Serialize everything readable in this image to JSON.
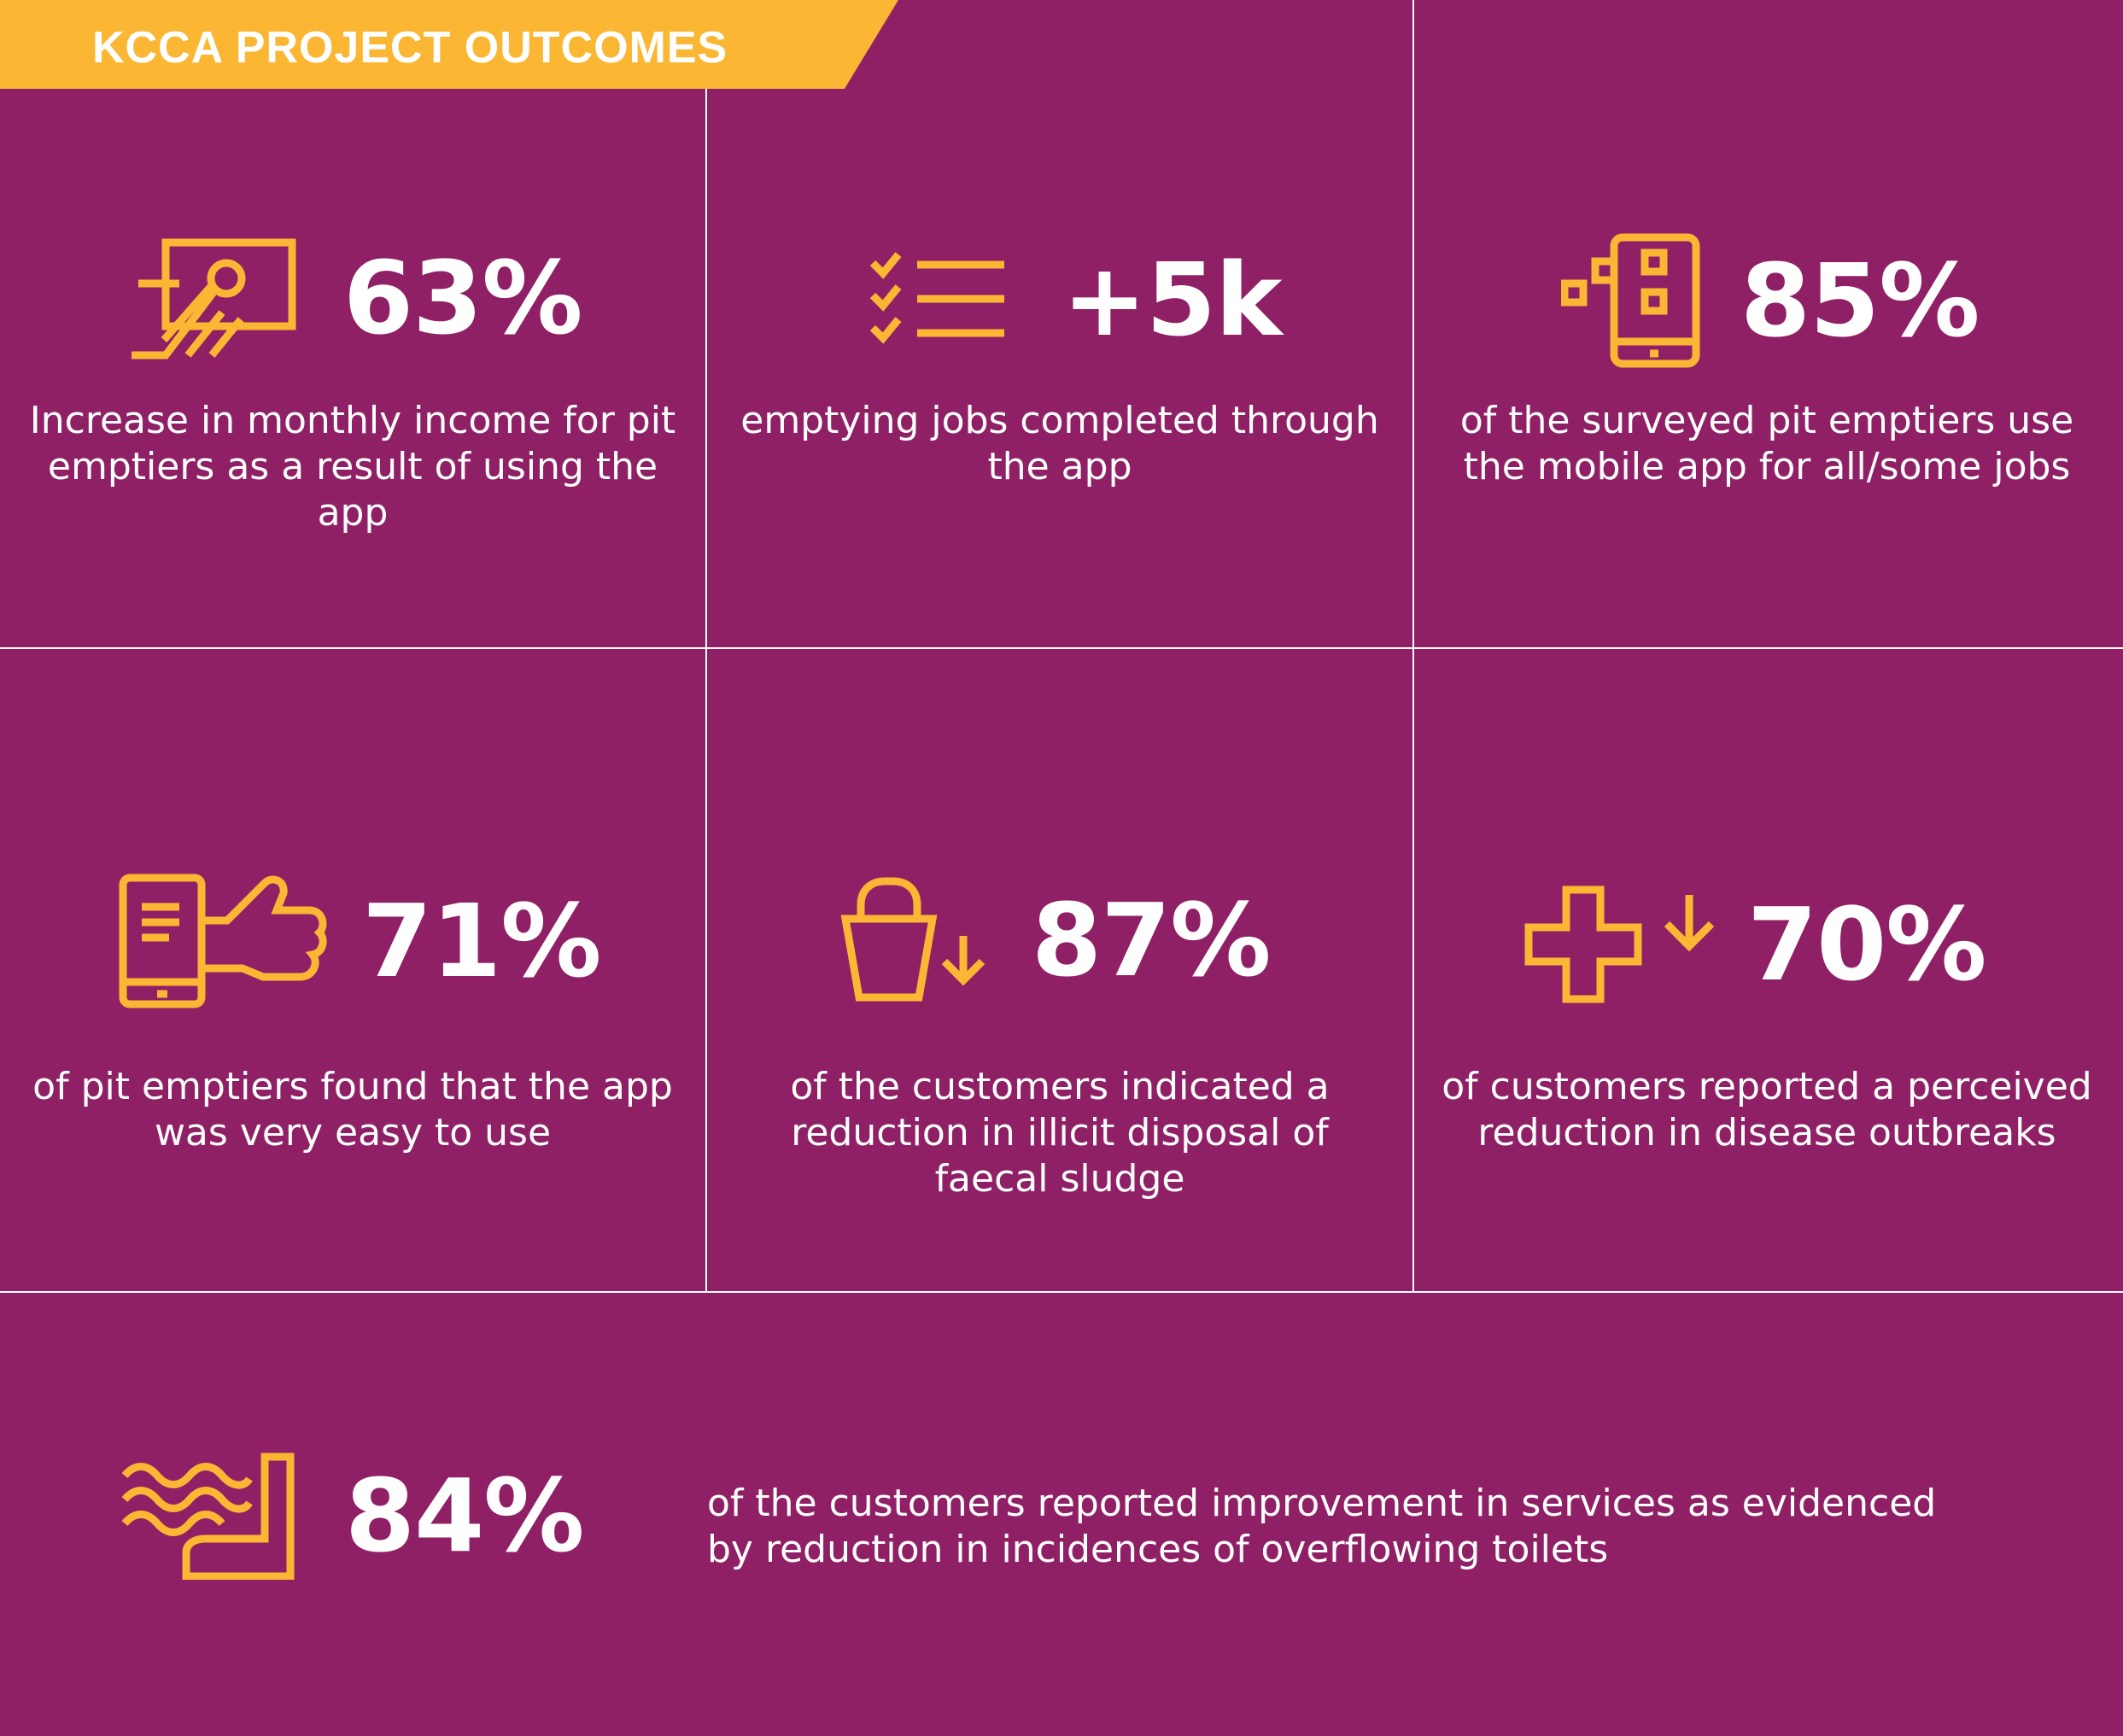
{
  "header": {
    "title": "KCCA PROJECT OUTCOMES"
  },
  "colors": {
    "background": "#8f2066",
    "accent": "#fbb734",
    "text": "#ffffff",
    "divider": "#ffffff"
  },
  "stats": [
    {
      "value": "63%",
      "description": "Increase in monthly income for pit emptiers as a result of using the app",
      "icon": "money-hand-icon"
    },
    {
      "value": "+5k",
      "description": "emptying jobs completed through the app",
      "icon": "checklist-icon"
    },
    {
      "value": "85%",
      "description": "of the surveyed pit emptiers use the mobile app for all/some jobs",
      "icon": "mobile-app-icon"
    },
    {
      "value": "71%",
      "description": "of pit emptiers found that the app was very easy to use",
      "icon": "phone-thumbs-up-icon"
    },
    {
      "value": "87%",
      "description": "of the customers indicated a reduction in illicit disposal of faecal sludge",
      "icon": "bucket-down-icon"
    },
    {
      "value": "70%",
      "description": "of customers reported a perceived reduction in disease outbreaks",
      "icon": "health-cross-down-icon"
    },
    {
      "value": "84%",
      "description": "of the customers reported improvement in services as evidenced by reduction in incidences of overflowing toilets",
      "icon": "overflowing-toilet-icon"
    }
  ]
}
